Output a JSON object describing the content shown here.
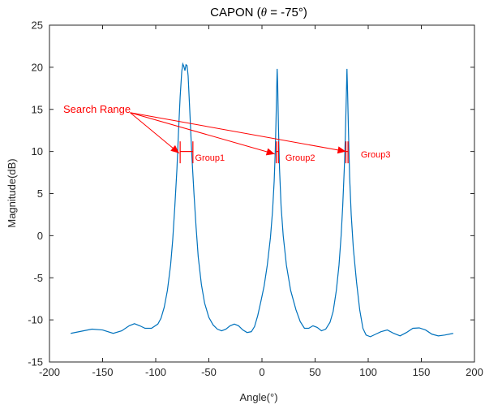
{
  "chart_data": {
    "type": "line",
    "title_prefix": "CAPON (",
    "title_theta": "θ",
    "title_suffix": " = -75°)",
    "xlabel": "Angle(°)",
    "ylabel": "Magnitude(dB)",
    "xlim": [
      -200,
      200
    ],
    "ylim": [
      -15,
      25
    ],
    "xticks": [
      -200,
      -150,
      -100,
      -50,
      0,
      50,
      100,
      150,
      200
    ],
    "yticks": [
      -15,
      -10,
      -5,
      0,
      5,
      10,
      15,
      20,
      25
    ],
    "grid": false,
    "line_color": "#0072BD",
    "annotation_color": "#FF0000",
    "series": [
      {
        "points": [
          [
            -180,
            -11.6
          ],
          [
            -170,
            -11.35
          ],
          [
            -160,
            -11.1
          ],
          [
            -150,
            -11.2
          ],
          [
            -140,
            -11.6
          ],
          [
            -132,
            -11.3
          ],
          [
            -125,
            -10.7
          ],
          [
            -120,
            -10.45
          ],
          [
            -115,
            -10.7
          ],
          [
            -110,
            -11.0
          ],
          [
            -104,
            -11.0
          ],
          [
            -98,
            -10.5
          ],
          [
            -95,
            -9.8
          ],
          [
            -92,
            -8.5
          ],
          [
            -89,
            -6.5
          ],
          [
            -86,
            -3.5
          ],
          [
            -84,
            -0.5
          ],
          [
            -82,
            3.5
          ],
          [
            -80,
            8.0
          ],
          [
            -78.5,
            12.5
          ],
          [
            -77,
            16.5
          ],
          [
            -75.5,
            19.5
          ],
          [
            -74.5,
            20.4
          ],
          [
            -73.5,
            20.1
          ],
          [
            -72.5,
            19.6
          ],
          [
            -71.5,
            20.3
          ],
          [
            -70.5,
            20.2
          ],
          [
            -69.5,
            19.0
          ],
          [
            -68,
            15.0
          ],
          [
            -66,
            9.5
          ],
          [
            -64,
            5.0
          ],
          [
            -62,
            1.0
          ],
          [
            -60,
            -2.5
          ],
          [
            -57,
            -5.8
          ],
          [
            -54,
            -8.0
          ],
          [
            -50,
            -9.7
          ],
          [
            -46,
            -10.6
          ],
          [
            -42,
            -11.1
          ],
          [
            -38,
            -11.3
          ],
          [
            -34,
            -11.1
          ],
          [
            -30,
            -10.7
          ],
          [
            -26,
            -10.5
          ],
          [
            -22,
            -10.7
          ],
          [
            -18,
            -11.2
          ],
          [
            -14,
            -11.5
          ],
          [
            -10,
            -11.4
          ],
          [
            -7,
            -10.8
          ],
          [
            -4,
            -9.5
          ],
          [
            -1,
            -7.8
          ],
          [
            2,
            -6.0
          ],
          [
            5,
            -3.5
          ],
          [
            8,
            -0.2
          ],
          [
            10,
            3.0
          ],
          [
            11.5,
            6.5
          ],
          [
            12.5,
            10.0
          ],
          [
            13.2,
            13.5
          ],
          [
            13.8,
            17.0
          ],
          [
            14.3,
            19.8
          ],
          [
            14.8,
            18.0
          ],
          [
            15.5,
            13.0
          ],
          [
            16.5,
            8.0
          ],
          [
            18,
            3.5
          ],
          [
            20,
            0.0
          ],
          [
            23,
            -3.5
          ],
          [
            27,
            -6.5
          ],
          [
            32,
            -8.8
          ],
          [
            36,
            -10.2
          ],
          [
            40,
            -11.0
          ],
          [
            44,
            -11.0
          ],
          [
            48,
            -10.7
          ],
          [
            52,
            -10.9
          ],
          [
            56,
            -11.3
          ],
          [
            60,
            -11.1
          ],
          [
            64,
            -10.3
          ],
          [
            67,
            -9.0
          ],
          [
            70,
            -6.5
          ],
          [
            72.5,
            -3.5
          ],
          [
            74.5,
            0.0
          ],
          [
            76,
            3.5
          ],
          [
            77.5,
            8.0
          ],
          [
            78.5,
            12.0
          ],
          [
            79.3,
            16.0
          ],
          [
            80,
            19.8
          ],
          [
            80.6,
            17.0
          ],
          [
            81.5,
            12.0
          ],
          [
            82.5,
            7.0
          ],
          [
            84,
            2.5
          ],
          [
            86,
            -1.5
          ],
          [
            89,
            -5.5
          ],
          [
            92,
            -8.8
          ],
          [
            95,
            -11.0
          ],
          [
            98,
            -11.8
          ],
          [
            102,
            -12.0
          ],
          [
            107,
            -11.7
          ],
          [
            112,
            -11.4
          ],
          [
            118,
            -11.2
          ],
          [
            124,
            -11.6
          ],
          [
            130,
            -11.9
          ],
          [
            136,
            -11.5
          ],
          [
            142,
            -11.0
          ],
          [
            148,
            -10.95
          ],
          [
            154,
            -11.2
          ],
          [
            160,
            -11.7
          ],
          [
            166,
            -11.9
          ],
          [
            172,
            -11.8
          ],
          [
            180,
            -11.6
          ]
        ]
      }
    ],
    "annotations": {
      "search_label": "Search Range",
      "search_anchor": [
        -147,
        15.0
      ],
      "arrow_targets": [
        [
          -78,
          9.8
        ],
        [
          12,
          9.7
        ],
        [
          79,
          10.0
        ]
      ],
      "groups": [
        {
          "label": "Group1",
          "range": [
            -77,
            -65
          ],
          "label_x": -63,
          "label_y": 8.9
        },
        {
          "label": "Group2",
          "range": [
            13.5,
            15.5
          ],
          "label_x": 22,
          "label_y": 8.9
        },
        {
          "label": "Group3",
          "range": [
            79,
            81
          ],
          "label_x": 93,
          "label_y": 9.3
        }
      ],
      "bar_y": 10.0,
      "bar_ymin": 8.6,
      "bar_ymax": 11.2
    }
  }
}
